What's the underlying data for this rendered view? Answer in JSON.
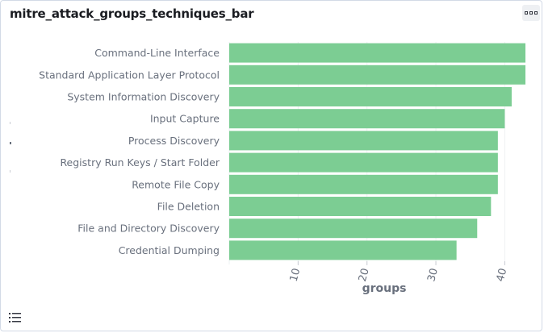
{
  "panel": {
    "title": "mitre_attack_groups_techniques_bar"
  },
  "icons": {
    "options": "more-options-icon",
    "legend": "legend-list-icon"
  },
  "colors": {
    "bar": "#7ccd93",
    "axis_text": "#69707d",
    "grid": "#eef0f3"
  },
  "chart_data": {
    "type": "bar",
    "orientation": "horizontal",
    "categories": [
      "Command-Line Interface",
      "Standard Application Layer Protocol",
      "System Information Discovery",
      "Input Capture",
      "Process Discovery",
      "Registry Run Keys / Start Folder",
      "Remote File Copy",
      "File Deletion",
      "File and Directory Discovery",
      "Credential Dumping"
    ],
    "values": [
      43,
      43,
      41,
      40,
      39,
      39,
      39,
      38,
      36,
      33
    ],
    "xlabel": "groups",
    "ylabel": "",
    "xlim": [
      0,
      43
    ],
    "xticks": [
      10,
      20,
      30,
      40
    ],
    "grid": true
  }
}
